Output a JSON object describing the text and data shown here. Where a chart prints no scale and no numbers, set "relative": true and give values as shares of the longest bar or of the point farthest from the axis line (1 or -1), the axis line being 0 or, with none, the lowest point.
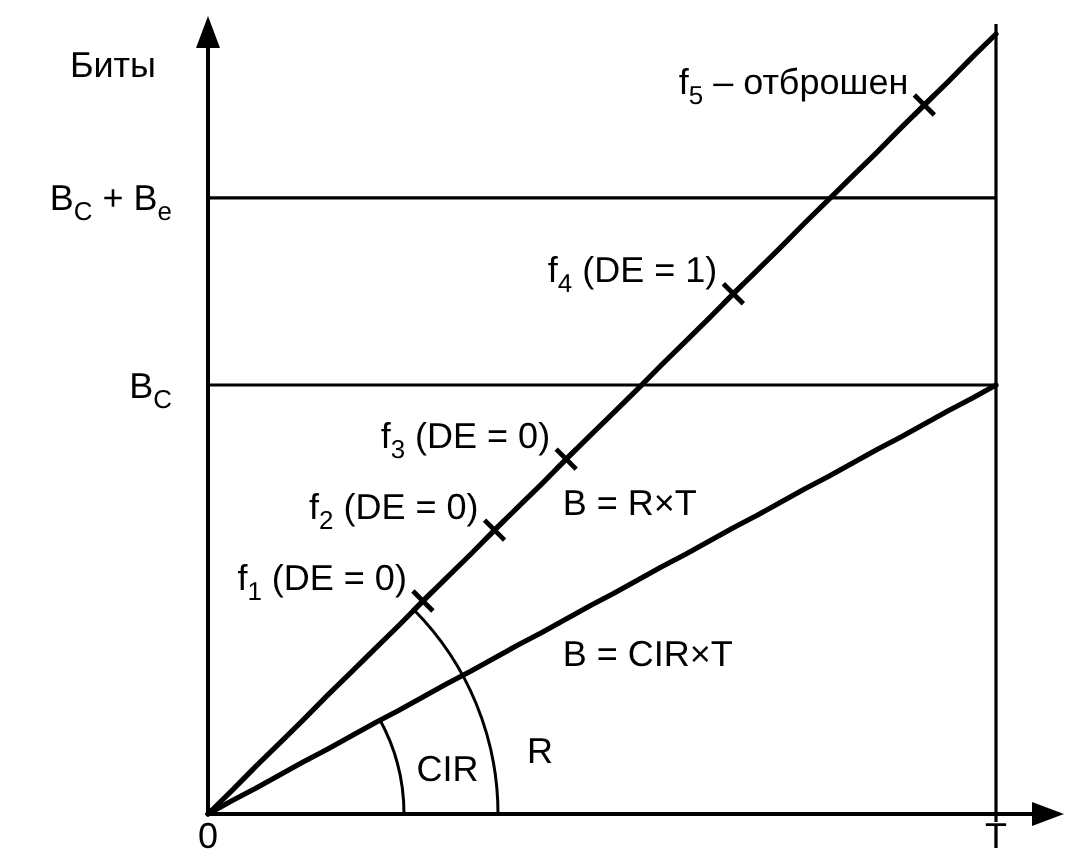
{
  "chart_data": {
    "type": "line",
    "ylabel": "Биты",
    "relative": true,
    "categories": [
      "0",
      null,
      null,
      null,
      null,
      null,
      null,
      null,
      null,
      null,
      null,
      null,
      null,
      null,
      null,
      null,
      null,
      null,
      null,
      null,
      null,
      null,
      null,
      null,
      null,
      null,
      null,
      null,
      null,
      null,
      null,
      null,
      null,
      "T"
    ],
    "series": [
      {
        "name": "B = R×T",
        "color": "#000000",
        "values": [
          0,
          0.03,
          0.061,
          0.091,
          0.121,
          0.152,
          0.182,
          0.212,
          0.242,
          0.273,
          0.303,
          0.333,
          0.364,
          0.394,
          0.424,
          0.455,
          0.485,
          0.515,
          0.545,
          0.576,
          0.606,
          0.636,
          0.667,
          0.697,
          0.727,
          0.758,
          0.788,
          0.818,
          0.848,
          0.879,
          0.909,
          0.939,
          0.97,
          1
        ]
      },
      {
        "name": "B = CIR×T",
        "color": "#000000",
        "values": [
          0,
          0.017,
          0.033,
          0.05,
          0.067,
          0.083,
          0.1,
          0.117,
          0.133,
          0.15,
          0.167,
          0.183,
          0.2,
          0.217,
          0.233,
          0.25,
          0.267,
          0.283,
          0.3,
          0.317,
          0.333,
          0.35,
          0.367,
          0.383,
          0.4,
          0.417,
          0.433,
          0.45,
          0.467,
          0.483,
          0.5,
          0.517,
          0.533,
          0.55
        ]
      },
      {
        "type": "scatter",
        "marker": "cross",
        "color": "#000000",
        "values": [
          null,
          null,
          null,
          null,
          null,
          null,
          null,
          null,
          null,
          0.273,
          null,
          null,
          0.364,
          null,
          null,
          0.455,
          null,
          null,
          null,
          null,
          null,
          null,
          0.667,
          null,
          null,
          null,
          null,
          null,
          null,
          null,
          0.909,
          null,
          null,
          null
        ]
      }
    ],
    "ref_lines": [
      {
        "axis": "y",
        "value": 0.55,
        "label": "B$_{C}$"
      },
      {
        "axis": "y",
        "value": 0.79,
        "label": "B$_{C}$ + B$_{e}$"
      },
      {
        "axis": "x",
        "value": "T"
      }
    ],
    "annotations": [
      "f$_{1}$ (DE = 0)",
      "f$_{2}$ (DE = 0)",
      "f$_{3}$ (DE = 0)",
      "f$_{4}$ (DE = 1)",
      "f$_{5}$ – отброшен",
      "CIR",
      "R"
    ]
  }
}
